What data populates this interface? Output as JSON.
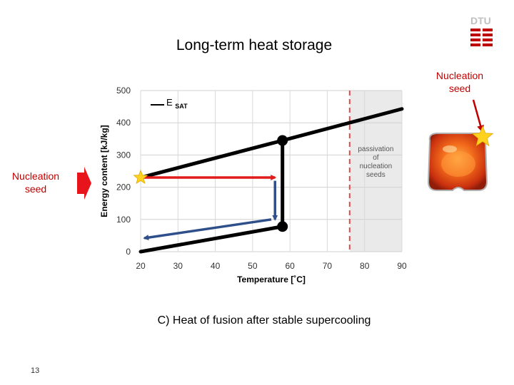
{
  "slide": {
    "title": "Long-term heat storage",
    "caption": "C) Heat of fusion after stable supercooling",
    "page_number": "13",
    "logo_text": "DTU",
    "left_seed_label": "Nucleation seed",
    "right_seed_label": "Nucleation seed",
    "accent_color": "#c00000"
  },
  "chart_data": {
    "type": "line",
    "title": "",
    "xlabel": "Temperature [˚C]",
    "ylabel": "Energy content [kJ/kg]",
    "xlim": [
      20,
      90
    ],
    "ylim": [
      0,
      500
    ],
    "xticks": [
      "20",
      "30",
      "40",
      "50",
      "60",
      "70",
      "80",
      "90"
    ],
    "yticks": [
      "0",
      "100",
      "200",
      "300",
      "400",
      "500"
    ],
    "grid": true,
    "legend_position": "top-left",
    "series": [
      {
        "name": "E SAT",
        "color": "#000000",
        "points": [
          [
            20,
            0
          ],
          [
            58,
            78
          ],
          [
            58,
            345
          ],
          [
            90,
            443
          ],
          [
            20,
            230
          ],
          [
            58,
            345
          ]
        ]
      }
    ],
    "shaded_region": {
      "x": [
        76,
        90
      ],
      "label": "passivation of nucleation seeds",
      "color": "#eaeaea"
    },
    "dashed_line": {
      "x": 76,
      "color": "#e24b4b"
    },
    "markers": [
      [
        58,
        345
      ],
      [
        58,
        78
      ]
    ],
    "arrows": [
      {
        "name": "red",
        "from": [
          20,
          230
        ],
        "to": [
          56,
          230
        ],
        "color": "#e01b1b"
      },
      {
        "name": "blue-down",
        "from": [
          56,
          220
        ],
        "to": [
          56,
          100
        ],
        "color": "#2e4f8a"
      },
      {
        "name": "blue-diagonal",
        "from": [
          55,
          100
        ],
        "to": [
          21,
          42
        ],
        "color": "#2e4f8a"
      }
    ]
  }
}
